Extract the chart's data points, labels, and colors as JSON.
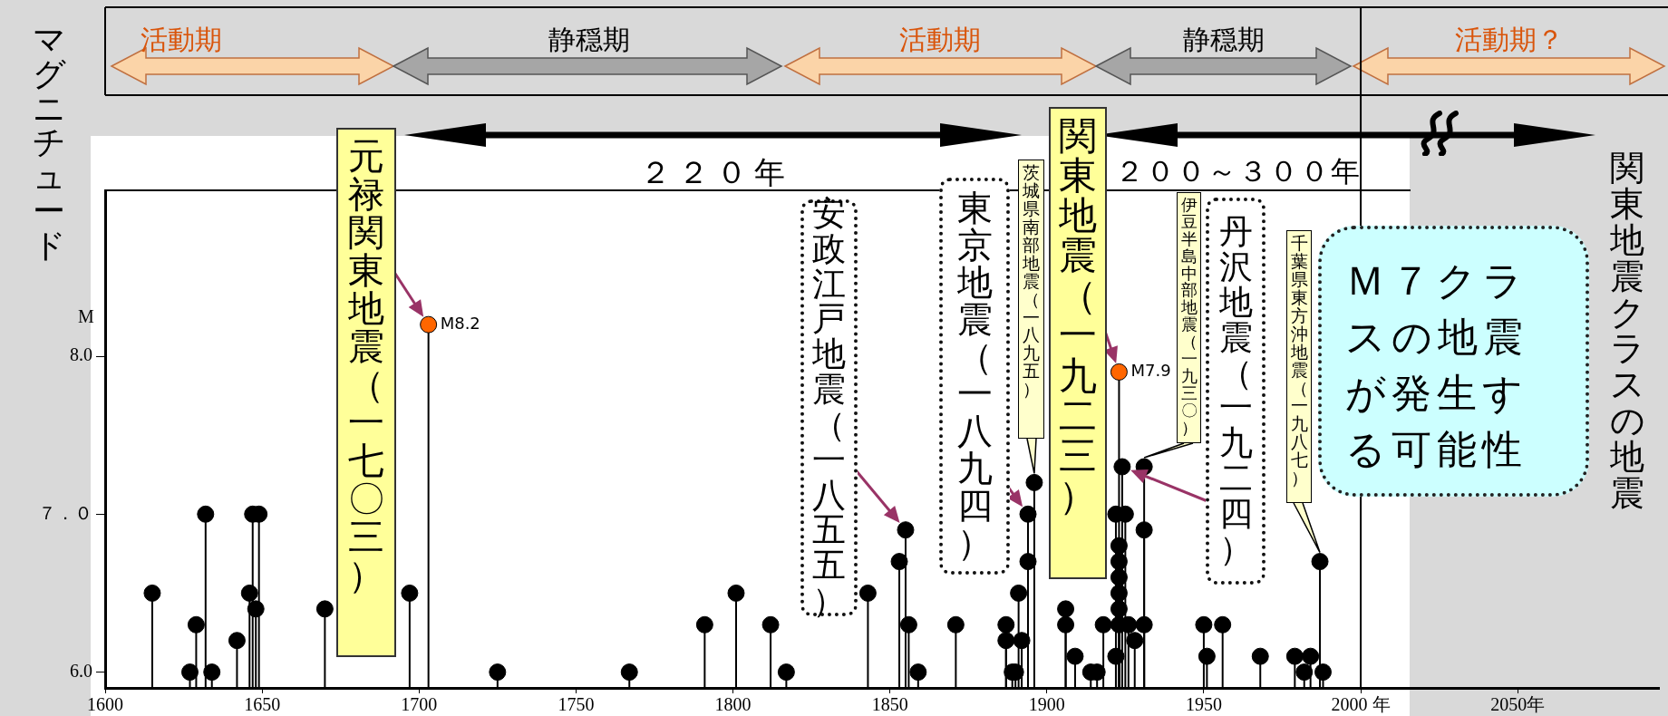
{
  "chart_data": {
    "type": "lollipop",
    "ylabel": "マグニチュード",
    "marker": "circle",
    "xlim": [
      1600,
      2095
    ],
    "ylim": [
      5.9,
      9.05
    ],
    "xticks": [
      1600,
      1650,
      1700,
      1750,
      1800,
      1850,
      1900,
      1950,
      {
        "value": 2000,
        "label": "2000 年"
      },
      {
        "value": 2050,
        "label": "2050年"
      }
    ],
    "yticks": [
      {
        "value": 6,
        "label": "6.0"
      },
      {
        "value": 7,
        "label": "７．０"
      },
      {
        "value": 8,
        "label": "8.0"
      }
    ],
    "series": [
      {
        "x": [
          1615,
          1627,
          1629,
          1632,
          1634,
          1642,
          1646,
          1647,
          1648,
          1649,
          1670,
          1697,
          1703,
          1725,
          1767,
          1791,
          1801,
          1812,
          1817,
          1843,
          1853,
          1855,
          1856,
          1859,
          1871,
          1887,
          1887,
          1889,
          1890,
          1891,
          1892,
          1894,
          1894,
          1896,
          1906,
          1906,
          1909,
          1914,
          1916,
          1918,
          1922,
          1922,
          1923,
          1923,
          1923,
          1923,
          1923,
          1923,
          1923,
          1924,
          1925,
          1926,
          1928,
          1931,
          1931,
          1931,
          1950,
          1951,
          1956,
          1968,
          1979,
          1982,
          1984,
          1987,
          1988
        ],
        "values": [
          6.5,
          6.0,
          6.3,
          7.0,
          6.0,
          6.2,
          6.5,
          7.0,
          6.4,
          7.0,
          6.4,
          6.5,
          8.2,
          6.0,
          6.0,
          6.3,
          6.5,
          6.3,
          6.0,
          6.5,
          6.7,
          6.9,
          6.3,
          6.0,
          6.3,
          6.3,
          6.2,
          6.0,
          6.0,
          6.5,
          6.2,
          7.0,
          6.7,
          7.2,
          6.4,
          6.3,
          6.1,
          6.0,
          6.0,
          6.3,
          6.1,
          7.0,
          7.9,
          6.8,
          6.7,
          6.6,
          6.5,
          6.4,
          6.3,
          7.3,
          7.0,
          6.3,
          6.2,
          6.3,
          6.9,
          7.3,
          6.3,
          6.1,
          6.3,
          6.1,
          6.1,
          6.0,
          6.1,
          6.7,
          6.0
        ],
        "colors": [
          "#000000",
          "#000000",
          "#000000",
          "#000000",
          "#000000",
          "#000000",
          "#000000",
          "#000000",
          "#000000",
          "#000000",
          "#000000",
          "#000000",
          "#ff6600",
          "#000000",
          "#000000",
          "#000000",
          "#000000",
          "#000000",
          "#000000",
          "#000000",
          "#000000",
          "#000000",
          "#000000",
          "#000000",
          "#000000",
          "#000000",
          "#000000",
          "#000000",
          "#000000",
          "#000000",
          "#000000",
          "#000000",
          "#000000",
          "#000000",
          "#000000",
          "#000000",
          "#000000",
          "#000000",
          "#000000",
          "#000000",
          "#000000",
          "#000000",
          "#ff6600",
          "#000000",
          "#000000",
          "#000000",
          "#000000",
          "#000000",
          "#000000",
          "#000000",
          "#000000",
          "#000000",
          "#000000",
          "#000000",
          "#000000",
          "#000000",
          "#000000",
          "#000000",
          "#000000",
          "#000000",
          "#000000",
          "#000000",
          "#000000",
          "#000000",
          "#000000"
        ],
        "value_labels": [
          null,
          null,
          null,
          null,
          null,
          null,
          null,
          null,
          null,
          null,
          null,
          null,
          "M8.2",
          null,
          null,
          null,
          null,
          null,
          null,
          null,
          null,
          null,
          null,
          null,
          null,
          null,
          null,
          null,
          null,
          null,
          null,
          null,
          null,
          null,
          null,
          null,
          null,
          null,
          null,
          null,
          null,
          null,
          "M7.9",
          null,
          null,
          null,
          null,
          null,
          null,
          null,
          null,
          null,
          null,
          null,
          null,
          null,
          null,
          null,
          null,
          null,
          null,
          null,
          null,
          null,
          null
        ]
      }
    ],
    "ref_lines": [
      {
        "axis": "x",
        "value": 2000
      }
    ],
    "annotations": [
      "元禄関東地震（一七〇三）",
      "安政江戸地震（一八五五）",
      "東京地震（一八九四）",
      "茨城県南部地震（一八九五）",
      "関東地震（一九二三）",
      "伊豆半島中部地震（一九三〇）",
      "丹沢地震（一九二四）",
      "千葉県東方沖地震（一九八七）",
      "M",
      "Ｍ７クラスの地震が発生する可能性",
      "関東地震クラスの地震",
      "活動期",
      "静穏期",
      "活動期",
      "静穏期",
      "活動期？",
      "２２０年",
      "２００～３００年"
    ]
  }
}
